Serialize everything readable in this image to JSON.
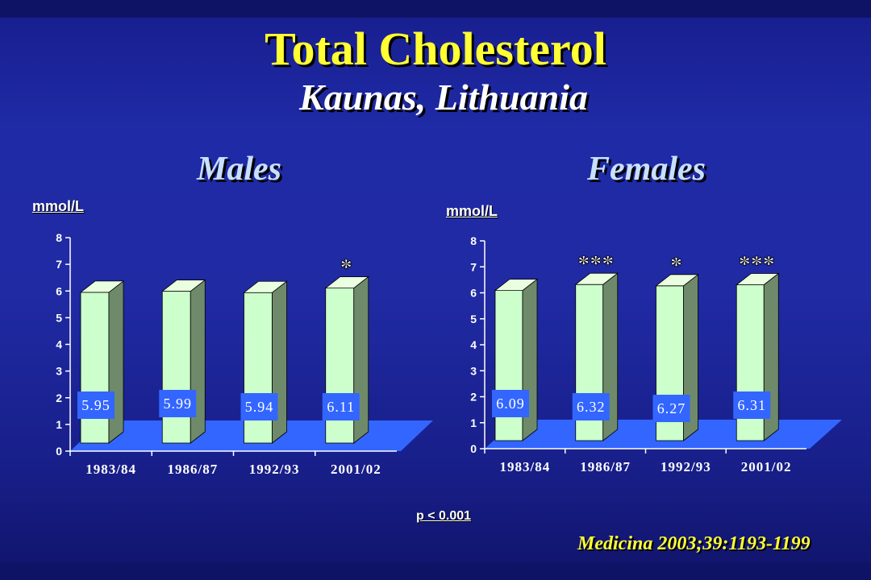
{
  "title": "Total Cholesterol",
  "subtitle": "Kaunas, Lithuania",
  "footnote": "p < 0.001",
  "citation": "Medicina 2003;39:1193-1199",
  "colors": {
    "bar_front": "#ccffcc",
    "bar_side": "#6f8a6a",
    "bar_top": "#eaffe0",
    "floor": "#3366ff",
    "label_box": "#3366ff",
    "title": "#ffff33"
  },
  "chart_data": [
    {
      "type": "bar",
      "title": "Males",
      "ylabel": "mmol/L",
      "ylim": [
        0,
        8
      ],
      "yticks": [
        "0",
        "1",
        "2",
        "3",
        "4",
        "5",
        "6",
        "7",
        "8"
      ],
      "categories": [
        "1983/84",
        "1986/87",
        "1992/93",
        "2001/02"
      ],
      "values": [
        5.95,
        5.99,
        5.94,
        6.11
      ],
      "value_labels": [
        "5.95",
        "5.99",
        "5.94",
        "6.11"
      ],
      "significance": [
        "",
        "",
        "",
        "*"
      ]
    },
    {
      "type": "bar",
      "title": "Females",
      "ylabel": "mmol/L",
      "ylim": [
        0,
        8
      ],
      "yticks": [
        "0",
        "1",
        "2",
        "3",
        "4",
        "5",
        "6",
        "7",
        "8"
      ],
      "categories": [
        "1983/84",
        "1986/87",
        "1992/93",
        "2001/02"
      ],
      "values": [
        6.09,
        6.32,
        6.27,
        6.31
      ],
      "value_labels": [
        "6.09",
        "6.32",
        "6.27",
        "6.31"
      ],
      "significance": [
        "",
        "***",
        "*",
        "***"
      ]
    }
  ]
}
